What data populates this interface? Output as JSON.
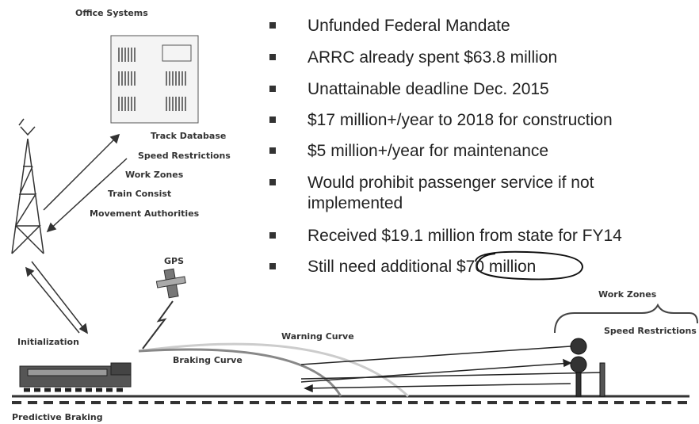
{
  "diagram": {
    "office_label": "Office Systems",
    "messages": [
      "Track Database",
      "Speed Restrictions",
      "Work Zones",
      "Train Consist",
      "Movement Authorities"
    ],
    "gps_label": "GPS",
    "initialization_label": "Initialization",
    "predictive_braking_label": "Predictive Braking",
    "warning_curve_label": "Warning Curve",
    "braking_curve_label": "Braking Curve",
    "work_zones_label": "Work Zones",
    "speed_restrictions_label": "Speed Restrictions"
  },
  "bullets": [
    "Unfunded Federal Mandate",
    "ARRC already spent $63.8 million",
    "Unattainable deadline Dec. 2015",
    "$17 million+/year to 2018 for construction",
    "$5 million+/year for maintenance",
    "Would prohibit passenger service if not implemented",
    "Received $19.1 million from state for FY14",
    "Still need additional $70 million"
  ]
}
